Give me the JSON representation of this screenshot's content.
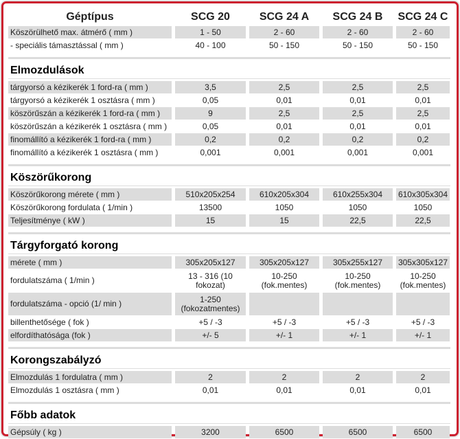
{
  "header": {
    "label": "Géptípus",
    "columns": [
      "SCG 20",
      "SCG 24 A",
      "SCG 24 B",
      "SCG 24 C"
    ]
  },
  "top_rows": [
    {
      "label": "Köszörülhető max. átmérő ( mm )",
      "values": [
        "1 - 50",
        "2 - 60",
        "2 - 60",
        "2 - 60"
      ]
    },
    {
      "label": "- speciális támasztással ( mm )",
      "values": [
        "40 - 100",
        "50 - 150",
        "50 - 150",
        "50 - 150"
      ]
    }
  ],
  "sections": [
    {
      "title": "Elmozdulások",
      "rows": [
        {
          "label": "tárgyorsó a kézikerék 1 ford-ra ( mm )",
          "values": [
            "3,5",
            "2,5",
            "2,5",
            "2,5"
          ]
        },
        {
          "label": "tárgyorsó a kézikerék 1 osztásra ( mm )",
          "values": [
            "0,05",
            "0,01",
            "0,01",
            "0,01"
          ]
        },
        {
          "label": "köszörűszán a kézikerék 1 ford-ra ( mm )",
          "values": [
            "9",
            "2,5",
            "2,5",
            "2,5"
          ]
        },
        {
          "label": "köszörűszán a kézikerék 1 osztásra ( mm )",
          "values": [
            "0,05",
            "0,01",
            "0,01",
            "0,01"
          ]
        },
        {
          "label": "finomállító a kézikerék 1 ford-ra ( mm )",
          "values": [
            "0,2",
            "0,2",
            "0,2",
            "0,2"
          ]
        },
        {
          "label": "finomállító a kézikerék 1 osztásra ( mm )",
          "values": [
            "0,001",
            "0,001",
            "0,001",
            "0,001"
          ]
        }
      ]
    },
    {
      "title": "Köszörűkorong",
      "rows": [
        {
          "label": "Köszörűkorong mérete ( mm )",
          "values": [
            "510x205x254",
            "610x205x304",
            "610x255x304",
            "610x305x304"
          ]
        },
        {
          "label": "Köszörűkorong fordulata ( 1/min )",
          "values": [
            "13500",
            "1050",
            "1050",
            "1050"
          ]
        },
        {
          "label": "Teljesítménye ( kW )",
          "values": [
            "15",
            "15",
            "22,5",
            "22,5"
          ]
        }
      ]
    },
    {
      "title": "Tárgyforgató korong",
      "rows": [
        {
          "label": "mérete ( mm )",
          "values": [
            "305x205x127",
            "305x205x127",
            "305x255x127",
            "305x305x127"
          ]
        },
        {
          "label": "fordulatszáma ( 1/min )",
          "values": [
            "13 - 316 (10 fokozat)",
            "10-250 (fok.mentes)",
            "10-250 (fok.mentes)",
            "10-250 (fok.mentes)"
          ]
        },
        {
          "label": "fordulatszáma - opció (1/ min )",
          "values": [
            "1-250 (fokozatmentes)",
            null,
            null,
            null
          ]
        },
        {
          "label": "billenthetősége ( fok )",
          "values": [
            "+5 / -3",
            "+5 / -3",
            "+5 / -3",
            "+5 / -3"
          ]
        },
        {
          "label": "elfordíthatósága (fok )",
          "values": [
            "+/- 5",
            "+/- 1",
            "+/- 1",
            "+/- 1"
          ]
        }
      ]
    },
    {
      "title": "Korongszabályzó",
      "rows": [
        {
          "label": "Elmozdulás 1 fordulatra ( mm )",
          "values": [
            "2",
            "2",
            "2",
            "2"
          ]
        },
        {
          "label": "Elmozdulás 1 osztásra ( mm )",
          "values": [
            "0,01",
            "0,01",
            "0,01",
            "0,01"
          ]
        }
      ]
    },
    {
      "title": "Főbb adatok",
      "rows": [
        {
          "label": "Gépsúly ( kg )",
          "values": [
            "3200",
            "6500",
            "6500",
            "6500"
          ]
        }
      ]
    }
  ]
}
